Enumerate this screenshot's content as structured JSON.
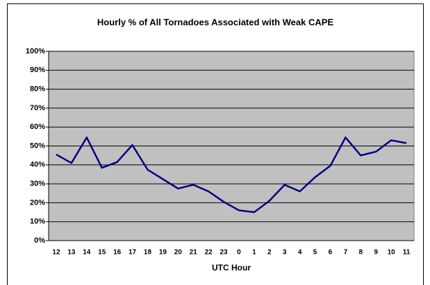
{
  "chart_data": {
    "type": "line",
    "title": "Hourly % of All Tornadoes Associated with Weak CAPE",
    "x_label": "UTC Hour",
    "categories": [
      "12",
      "13",
      "14",
      "15",
      "16",
      "17",
      "18",
      "19",
      "20",
      "21",
      "22",
      "23",
      "0",
      "1",
      "2",
      "3",
      "4",
      "5",
      "6",
      "7",
      "8",
      "9",
      "10",
      "11"
    ],
    "series": [
      {
        "name": "Weak CAPE",
        "color": "#000080",
        "values": [
          45.5,
          41,
          54.5,
          38.5,
          41.5,
          50.5,
          37.5,
          32.5,
          27.5,
          29.5,
          26,
          20.5,
          16,
          15,
          21,
          29.5,
          26,
          33.5,
          39.5,
          54.5,
          45,
          47,
          53,
          51.5
        ]
      }
    ],
    "ylim": [
      0,
      100
    ],
    "yticks": [
      {
        "value": 0,
        "label": "0%"
      },
      {
        "value": 10,
        "label": "10%"
      },
      {
        "value": 20,
        "label": "20%"
      },
      {
        "value": 30,
        "label": "30%"
      },
      {
        "value": 40,
        "label": "40%"
      },
      {
        "value": 50,
        "label": "50%"
      },
      {
        "value": 60,
        "label": "60%"
      },
      {
        "value": 70,
        "label": "70%"
      },
      {
        "value": 80,
        "label": "80%"
      },
      {
        "value": 90,
        "label": "90%"
      },
      {
        "value": 100,
        "label": "100%"
      }
    ],
    "grid": true
  }
}
